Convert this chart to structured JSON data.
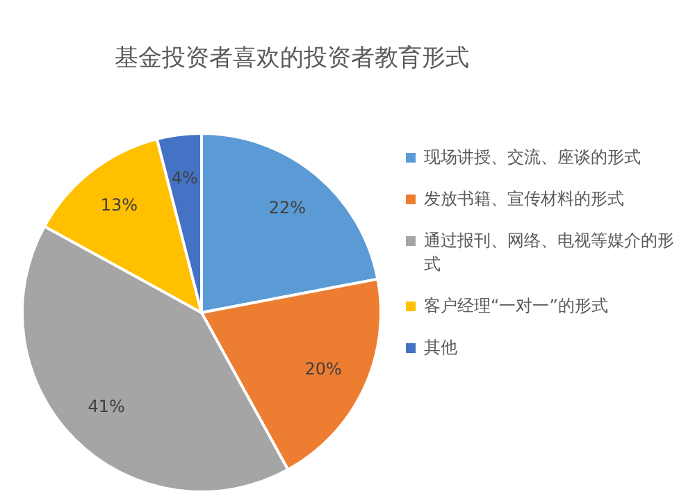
{
  "chart_data": {
    "type": "pie",
    "title": "基金投资者喜欢的投资者教育形式",
    "categories": [
      "现场讲授、交流、座谈的形式",
      "发放书籍、宣传材料的形式",
      "通过报刊、网络、电视等媒介的形式",
      "客户经理“一对一”的形式",
      "其他"
    ],
    "values": [
      22,
      20,
      41,
      13,
      4
    ],
    "colors": [
      "#5b9bd5",
      "#ed7d31",
      "#a5a5a5",
      "#ffc000",
      "#4472c4"
    ],
    "value_labels": [
      "22%",
      "20%",
      "41%",
      "13%",
      "4%"
    ],
    "legend": "right"
  }
}
